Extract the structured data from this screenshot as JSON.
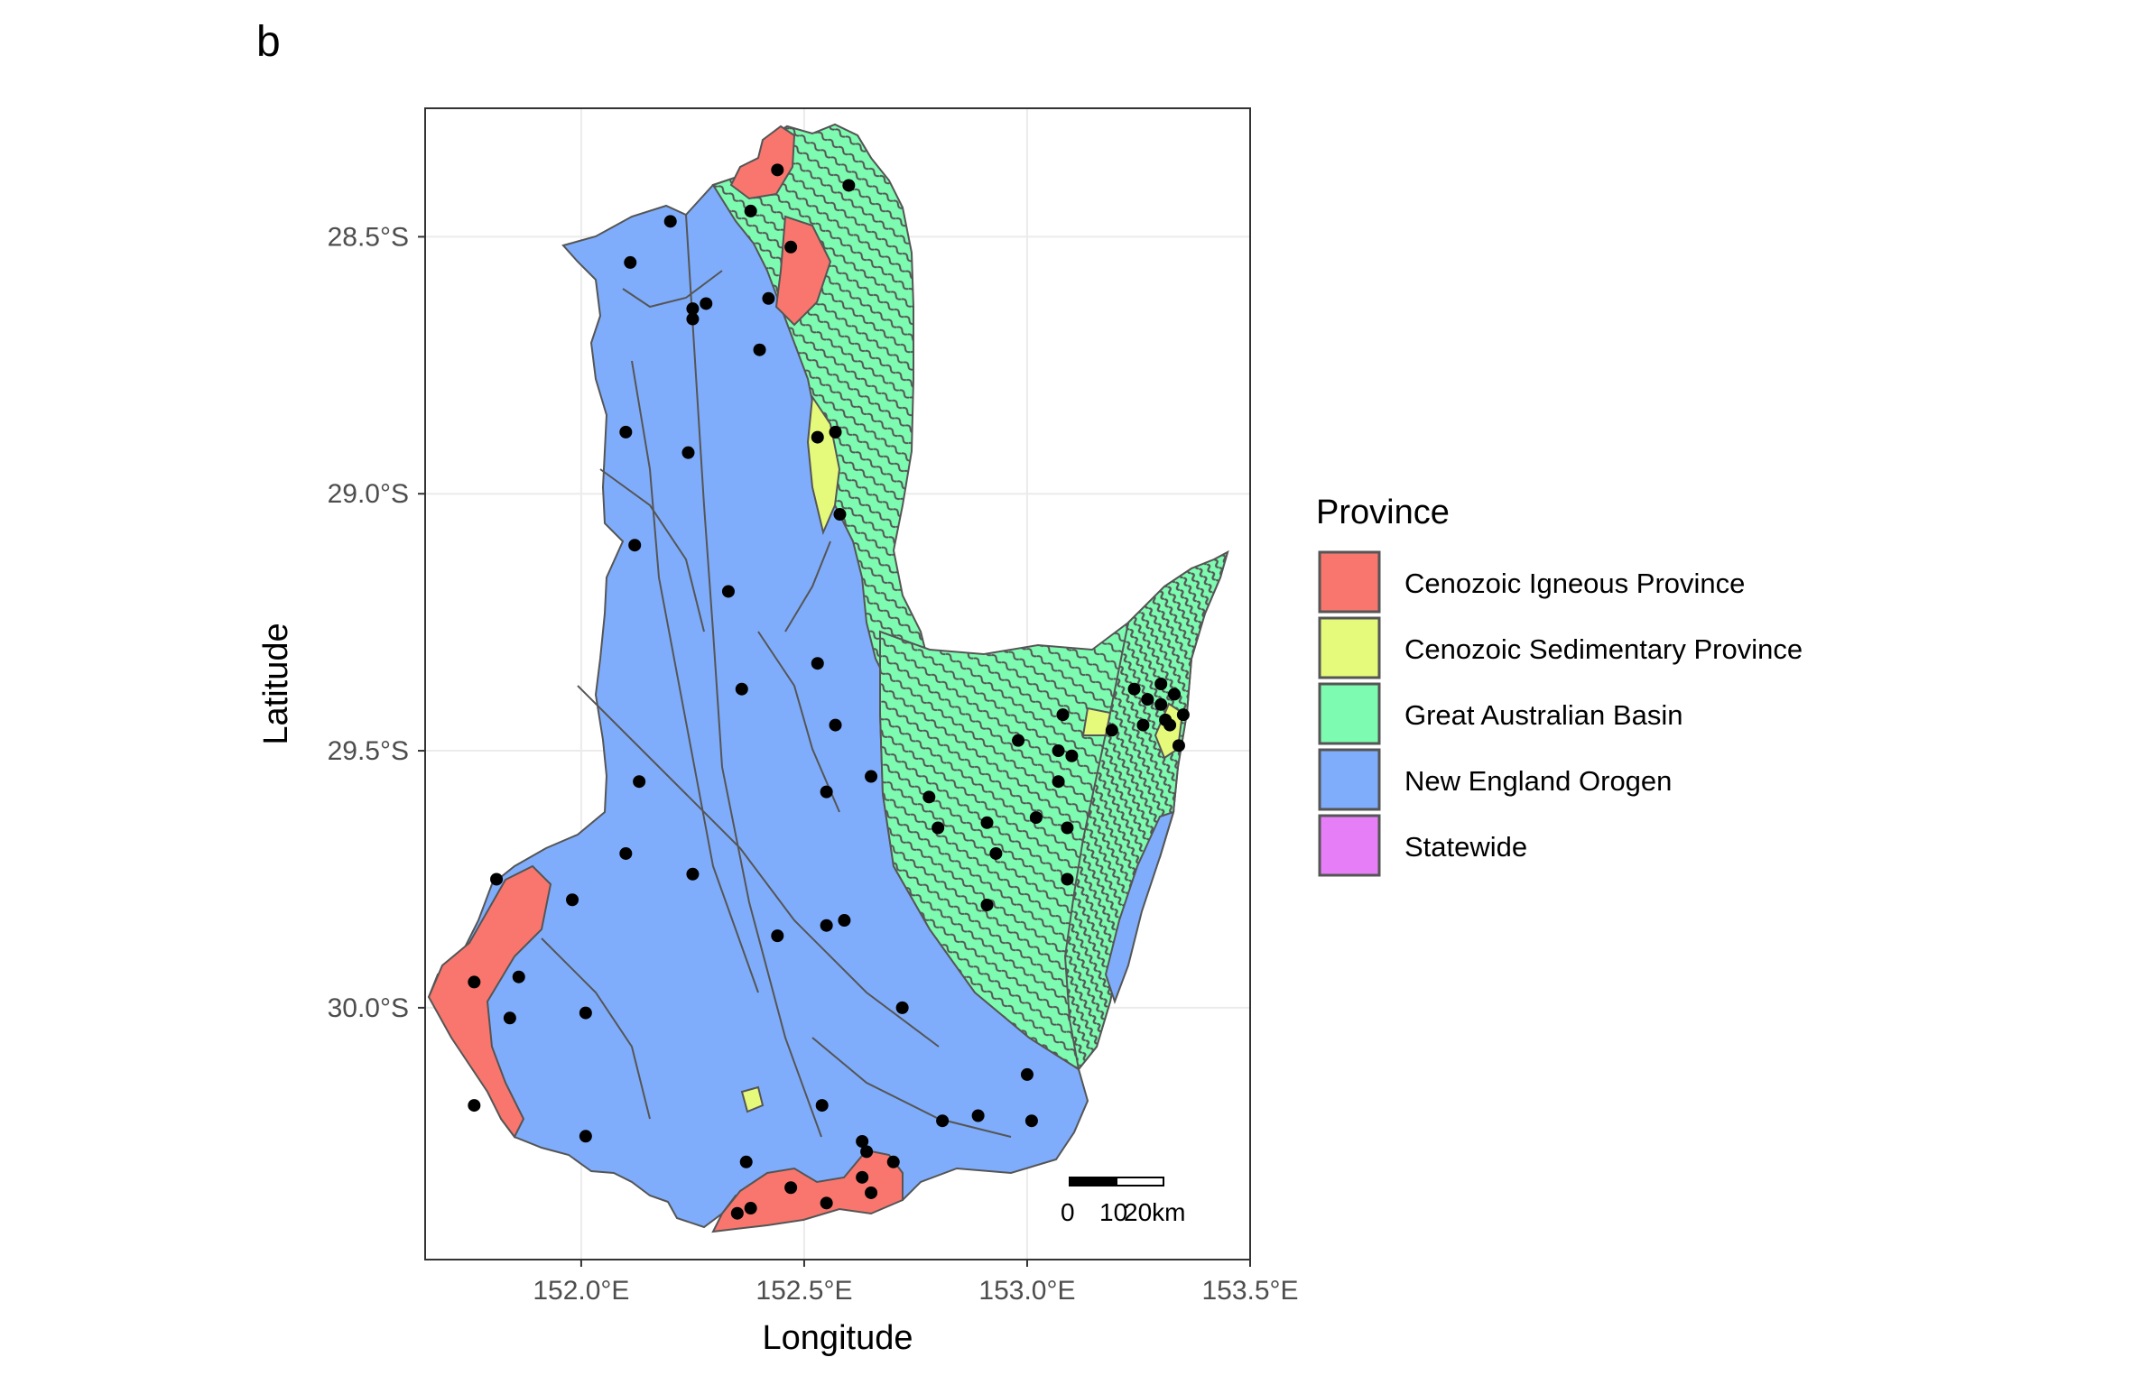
{
  "panel_label": "b",
  "axes": {
    "x_title": "Longitude",
    "y_title": "Latitude",
    "x_ticks": [
      {
        "value": 152.0,
        "label": "152.0°E"
      },
      {
        "value": 152.5,
        "label": "152.5°E"
      },
      {
        "value": 153.0,
        "label": "153.0°E"
      },
      {
        "value": 153.5,
        "label": "153.5°E"
      }
    ],
    "y_ticks": [
      {
        "value": -28.5,
        "label": "28.5°S"
      },
      {
        "value": -29.0,
        "label": "29.0°S"
      },
      {
        "value": -29.5,
        "label": "29.5°S"
      },
      {
        "value": -30.0,
        "label": "30.0°S"
      }
    ],
    "xlim": [
      151.65,
      153.5
    ],
    "ylim": [
      -30.49,
      -28.25
    ]
  },
  "legend": {
    "title": "Province",
    "items": [
      {
        "label": "Cenozoic Igneous Province",
        "color": "#f8766d"
      },
      {
        "label": "Cenozoic Sedimentary Province",
        "color": "#e5f97a"
      },
      {
        "label": "Great Australian Basin",
        "color": "#7dfbb0"
      },
      {
        "label": "New England Orogen",
        "color": "#7fadfb"
      },
      {
        "label": "Statewide",
        "color": "#e67ef8"
      }
    ]
  },
  "scale_bar": {
    "labels": [
      "0",
      "10",
      "20km"
    ]
  },
  "colors": {
    "boundary": "#555555",
    "grid": "#ebebeb",
    "point": "#000000"
  },
  "sample_points": [
    [
      152.44,
      -28.37
    ],
    [
      152.6,
      -28.4
    ],
    [
      152.38,
      -28.45
    ],
    [
      152.2,
      -28.47
    ],
    [
      152.47,
      -28.52
    ],
    [
      152.11,
      -28.55
    ],
    [
      152.25,
      -28.64
    ],
    [
      152.28,
      -28.63
    ],
    [
      152.42,
      -28.62
    ],
    [
      152.25,
      -28.66
    ],
    [
      152.4,
      -28.72
    ],
    [
      152.1,
      -28.88
    ],
    [
      152.53,
      -28.89
    ],
    [
      152.57,
      -28.88
    ],
    [
      152.24,
      -28.92
    ],
    [
      152.58,
      -29.04
    ],
    [
      152.12,
      -29.1
    ],
    [
      152.33,
      -29.19
    ],
    [
      152.53,
      -29.33
    ],
    [
      152.36,
      -29.38
    ],
    [
      152.57,
      -29.45
    ],
    [
      153.24,
      -29.38
    ],
    [
      153.3,
      -29.37
    ],
    [
      153.33,
      -29.39
    ],
    [
      153.27,
      -29.4
    ],
    [
      153.3,
      -29.41
    ],
    [
      153.08,
      -29.43
    ],
    [
      153.35,
      -29.43
    ],
    [
      153.31,
      -29.44
    ],
    [
      153.26,
      -29.45
    ],
    [
      153.32,
      -29.45
    ],
    [
      153.19,
      -29.46
    ],
    [
      152.98,
      -29.48
    ],
    [
      153.34,
      -29.49
    ],
    [
      153.07,
      -29.5
    ],
    [
      153.1,
      -29.51
    ],
    [
      152.65,
      -29.55
    ],
    [
      152.13,
      -29.56
    ],
    [
      153.07,
      -29.56
    ],
    [
      152.55,
      -29.58
    ],
    [
      152.78,
      -29.59
    ],
    [
      153.02,
      -29.63
    ],
    [
      152.91,
      -29.64
    ],
    [
      152.8,
      -29.65
    ],
    [
      153.09,
      -29.65
    ],
    [
      152.93,
      -29.7
    ],
    [
      152.1,
      -29.7
    ],
    [
      153.09,
      -29.75
    ],
    [
      151.81,
      -29.75
    ],
    [
      152.25,
      -29.74
    ],
    [
      151.98,
      -29.79
    ],
    [
      152.91,
      -29.8
    ],
    [
      152.59,
      -29.83
    ],
    [
      152.55,
      -29.84
    ],
    [
      152.44,
      -29.86
    ],
    [
      151.86,
      -29.94
    ],
    [
      151.76,
      -29.95
    ],
    [
      152.72,
      -30.0
    ],
    [
      151.84,
      -30.02
    ],
    [
      152.01,
      -30.01
    ],
    [
      153.0,
      -30.13
    ],
    [
      151.76,
      -30.19
    ],
    [
      152.54,
      -30.19
    ],
    [
      152.89,
      -30.21
    ],
    [
      152.81,
      -30.22
    ],
    [
      153.01,
      -30.22
    ],
    [
      152.01,
      -30.25
    ],
    [
      152.63,
      -30.26
    ],
    [
      152.64,
      -30.28
    ],
    [
      152.37,
      -30.3
    ],
    [
      152.7,
      -30.3
    ],
    [
      152.63,
      -30.33
    ],
    [
      152.47,
      -30.35
    ],
    [
      152.65,
      -30.36
    ],
    [
      152.55,
      -30.38
    ],
    [
      152.35,
      -30.4
    ],
    [
      152.38,
      -30.39
    ]
  ]
}
